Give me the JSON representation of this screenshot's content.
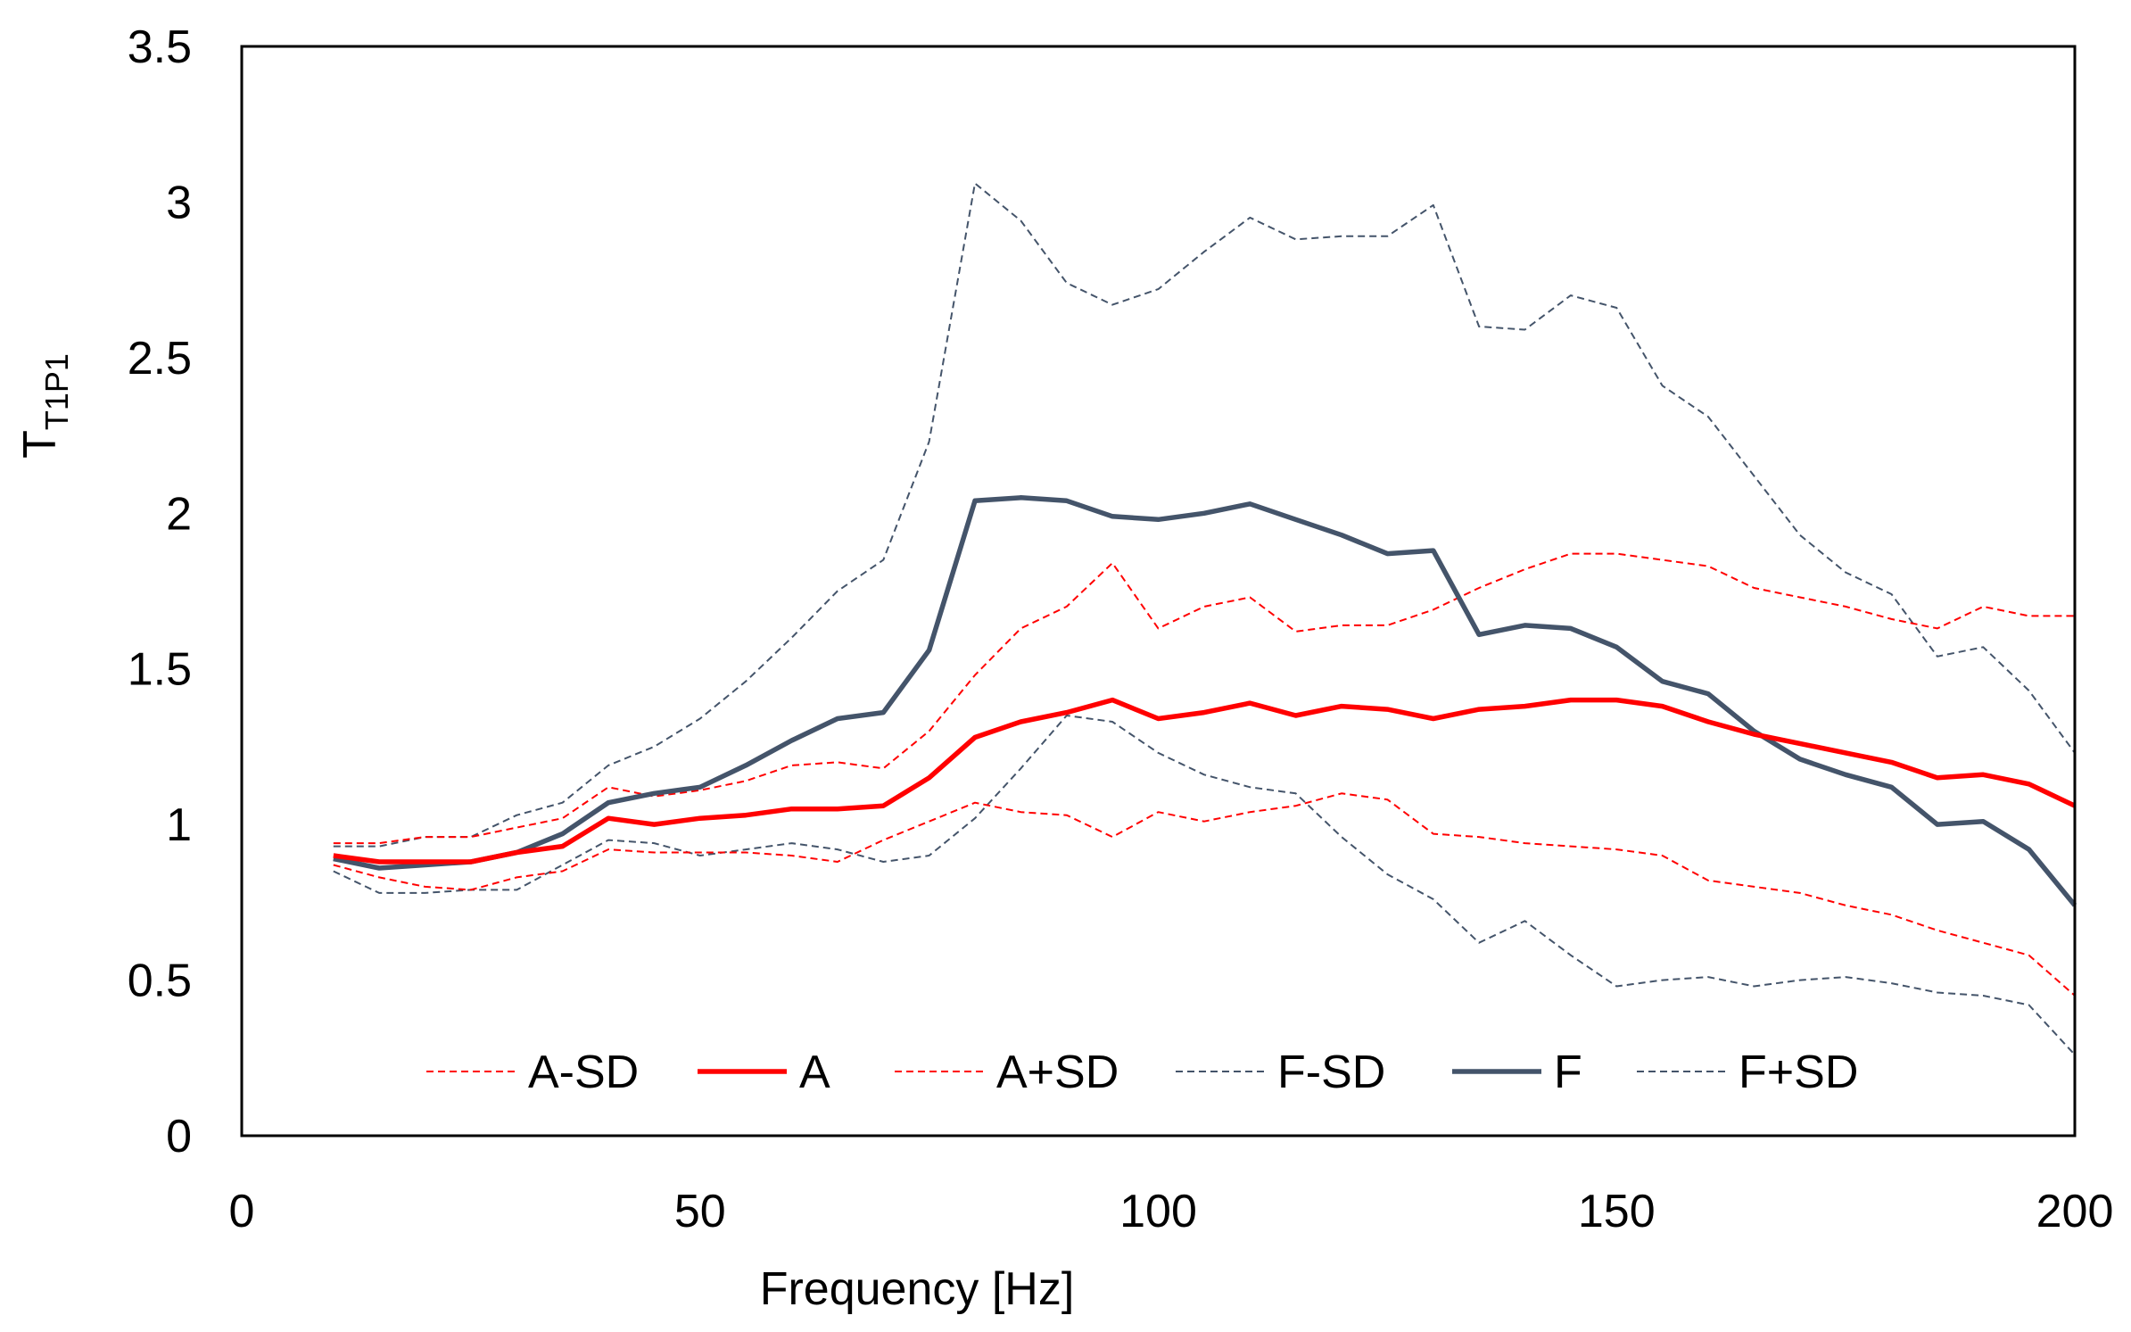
{
  "chart_data": {
    "type": "line",
    "title": "",
    "xlabel": "Frequency [Hz]",
    "ylabel_main": "T",
    "ylabel_sub": "T1P1",
    "xlim": [
      0,
      200
    ],
    "ylim": [
      0,
      3.5
    ],
    "xticks": [
      0,
      50,
      100,
      150,
      200
    ],
    "yticks": [
      0,
      0.5,
      1,
      1.5,
      2,
      2.5,
      3,
      3.5
    ],
    "ytick_labels": [
      "0",
      "0.5",
      "1",
      "1.5",
      "2",
      "2.5",
      "3",
      "3.5"
    ],
    "xtick_labels": [
      "0",
      "50",
      "100",
      "150",
      "200"
    ],
    "grid": false,
    "legend_position": "bottom-inside",
    "x": [
      10,
      15,
      20,
      25,
      30,
      35,
      40,
      45,
      50,
      55,
      60,
      65,
      70,
      75,
      80,
      85,
      90,
      95,
      100,
      105,
      110,
      115,
      120,
      125,
      130,
      135,
      140,
      145,
      150,
      155,
      160,
      165,
      170,
      175,
      180,
      185,
      190,
      195,
      200
    ],
    "series": [
      {
        "name": "A-SD",
        "color": "#ff0000",
        "style": "dashed",
        "values": [
          0.87,
          0.83,
          0.8,
          0.79,
          0.83,
          0.85,
          0.92,
          0.91,
          0.91,
          0.91,
          0.9,
          0.88,
          0.95,
          1.01,
          1.07,
          1.04,
          1.03,
          0.96,
          1.04,
          1.01,
          1.04,
          1.06,
          1.1,
          1.08,
          0.97,
          0.96,
          0.94,
          0.93,
          0.92,
          0.9,
          0.82,
          0.8,
          0.78,
          0.74,
          0.71,
          0.66,
          0.62,
          0.58,
          0.45
        ]
      },
      {
        "name": "A",
        "color": "#ff0000",
        "style": "solid",
        "values": [
          0.9,
          0.88,
          0.88,
          0.88,
          0.91,
          0.93,
          1.02,
          1.0,
          1.02,
          1.03,
          1.05,
          1.05,
          1.06,
          1.15,
          1.28,
          1.33,
          1.36,
          1.4,
          1.34,
          1.36,
          1.39,
          1.35,
          1.38,
          1.37,
          1.34,
          1.37,
          1.38,
          1.4,
          1.4,
          1.38,
          1.33,
          1.29,
          1.26,
          1.23,
          1.2,
          1.15,
          1.16,
          1.13,
          1.06
        ]
      },
      {
        "name": "A+SD",
        "color": "#ff0000",
        "style": "dashed",
        "values": [
          0.94,
          0.94,
          0.96,
          0.96,
          0.99,
          1.02,
          1.12,
          1.09,
          1.11,
          1.14,
          1.19,
          1.2,
          1.18,
          1.3,
          1.48,
          1.63,
          1.7,
          1.84,
          1.63,
          1.7,
          1.73,
          1.62,
          1.64,
          1.64,
          1.69,
          1.76,
          1.82,
          1.87,
          1.87,
          1.85,
          1.83,
          1.76,
          1.73,
          1.7,
          1.66,
          1.63,
          1.7,
          1.67,
          1.67
        ]
      },
      {
        "name": "F-SD",
        "color": "#44546a",
        "style": "dashed",
        "values": [
          0.85,
          0.78,
          0.78,
          0.79,
          0.79,
          0.87,
          0.95,
          0.94,
          0.9,
          0.92,
          0.94,
          0.92,
          0.88,
          0.9,
          1.02,
          1.18,
          1.35,
          1.33,
          1.23,
          1.16,
          1.12,
          1.1,
          0.96,
          0.84,
          0.76,
          0.62,
          0.69,
          0.58,
          0.48,
          0.5,
          0.51,
          0.48,
          0.5,
          0.51,
          0.49,
          0.46,
          0.45,
          0.42,
          0.26
        ]
      },
      {
        "name": "F",
        "color": "#44546a",
        "style": "solid",
        "values": [
          0.89,
          0.86,
          0.87,
          0.88,
          0.91,
          0.97,
          1.07,
          1.1,
          1.12,
          1.19,
          1.27,
          1.34,
          1.36,
          1.56,
          2.04,
          2.05,
          2.04,
          1.99,
          1.98,
          2.0,
          2.03,
          1.98,
          1.93,
          1.87,
          1.88,
          1.61,
          1.64,
          1.63,
          1.57,
          1.46,
          1.42,
          1.3,
          1.21,
          1.16,
          1.12,
          1.0,
          1.01,
          0.92,
          0.74
        ]
      },
      {
        "name": "F+SD",
        "color": "#44546a",
        "style": "dashed",
        "values": [
          0.93,
          0.93,
          0.96,
          0.96,
          1.03,
          1.07,
          1.19,
          1.25,
          1.34,
          1.46,
          1.6,
          1.75,
          1.85,
          2.23,
          3.06,
          2.94,
          2.74,
          2.67,
          2.72,
          2.84,
          2.95,
          2.88,
          2.89,
          2.89,
          2.99,
          2.6,
          2.59,
          2.7,
          2.66,
          2.41,
          2.31,
          2.12,
          1.93,
          1.81,
          1.74,
          1.54,
          1.57,
          1.43,
          1.23
        ]
      }
    ]
  }
}
